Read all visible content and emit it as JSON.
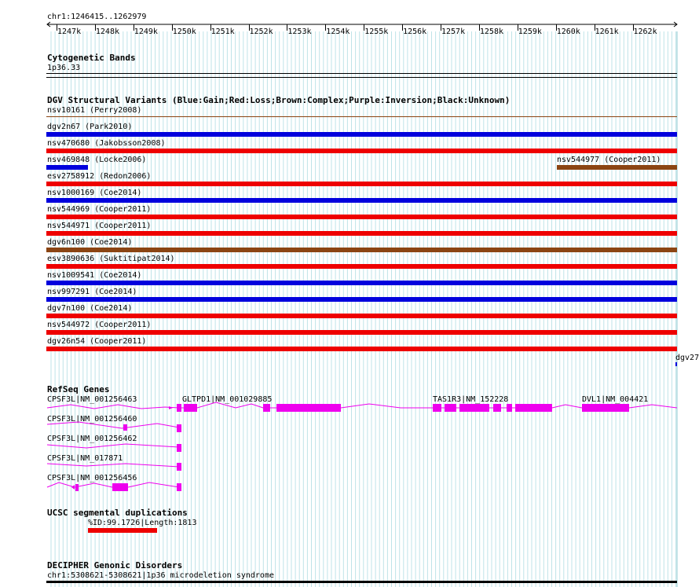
{
  "ruler": {
    "region": "chr1:1246415..1262979",
    "ticks": [
      "1247k",
      "1248k",
      "1249k",
      "1250k",
      "1251k",
      "1252k",
      "1253k",
      "1254k",
      "1255k",
      "1256k",
      "1257k",
      "1258k",
      "1259k",
      "1260k",
      "1261k",
      "1262k"
    ]
  },
  "cyto": {
    "title": "Cytogenetic Bands",
    "band": "1p36.33"
  },
  "dgv": {
    "title": "DGV Structural Variants (Blue:Gain;Red:Loss;Brown:Complex;Purple:Inversion;Black:Unknown)",
    "first": "nsv10161 (Perry2008)",
    "extra_label": "nsv544977 (Cooper2011)",
    "edge_label": "dgv27",
    "colors": {
      "gain": "#0000dd",
      "loss": "#ee0000",
      "complex": "#8b4513"
    },
    "rows": [
      {
        "label": "dgv2n67 (Park2010)",
        "type": "gain"
      },
      {
        "label": "nsv470680 (Jakobsson2008)",
        "type": "loss"
      },
      {
        "label": "nsv469848 (Locke2006)",
        "type": "gain"
      },
      {
        "label": "esv2758912 (Redon2006)",
        "type": "loss"
      },
      {
        "label": "nsv1000169 (Coe2014)",
        "type": "gain"
      },
      {
        "label": "nsv544969 (Cooper2011)",
        "type": "loss"
      },
      {
        "label": "nsv544971 (Cooper2011)",
        "type": "loss"
      },
      {
        "label": "dgv6n100 (Coe2014)",
        "type": "complex"
      },
      {
        "label": "esv3890636 (Suktitipat2014)",
        "type": "loss"
      },
      {
        "label": "nsv1009541 (Coe2014)",
        "type": "gain"
      },
      {
        "label": "nsv997291 (Coe2014)",
        "type": "gain"
      },
      {
        "label": "dgv7n100 (Coe2014)",
        "type": "loss"
      },
      {
        "label": "nsv544972 (Cooper2011)",
        "type": "loss"
      },
      {
        "label": "dgv26n54 (Cooper2011)",
        "type": "loss"
      }
    ]
  },
  "refseq": {
    "title": "RefSeq Genes",
    "gene_color": "#ee00ee",
    "labels": {
      "cpsf3l_463": "CPSF3L|NM_001256463",
      "gltpd1": "GLTPD1|NM_001029885",
      "tas1r3": "TAS1R3|NM_152228",
      "dvl1": "DVL1|NM_004421",
      "cpsf3l_460": "CPSF3L|NM_001256460",
      "cpsf3l_462": "CPSF3L|NM_001256462",
      "cpsf3l_871": "CPSF3L|NM_017871",
      "cpsf3l_456": "CPSF3L|NM_001256456"
    }
  },
  "segdup": {
    "title": "UCSC segmental duplications",
    "label": "%ID:99.1726|Length:1813"
  },
  "decipher": {
    "title": "DECIPHER Genonic Disorders",
    "label": "chr1:5308621-5308621|1p36 microdeletion syndrome"
  }
}
